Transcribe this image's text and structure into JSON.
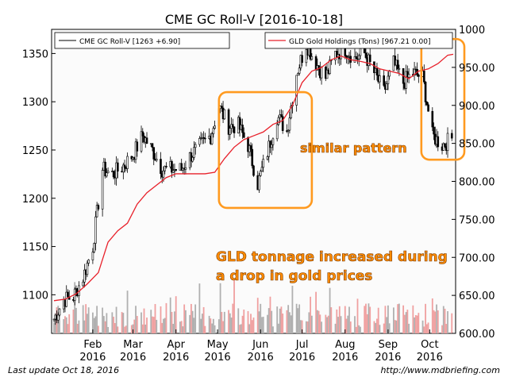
{
  "chart_data": {
    "type": "line",
    "title": "CME GC Roll-V  [2016-10-18]",
    "xlabel": "",
    "ylabel": "",
    "ylabel_right": "",
    "x_ticks": [
      {
        "month": "Feb",
        "year": "2016"
      },
      {
        "month": "Mar",
        "year": "2016"
      },
      {
        "month": "Apr",
        "year": "2016"
      },
      {
        "month": "May",
        "year": "2016"
      },
      {
        "month": "Jun",
        "year": "2016"
      },
      {
        "month": "Jul",
        "year": "2016"
      },
      {
        "month": "Aug",
        "year": "2016"
      },
      {
        "month": "Sep",
        "year": "2016"
      },
      {
        "month": "Oct",
        "year": "2016"
      }
    ],
    "x_range": [
      "2016-01-04",
      "2016-10-18"
    ],
    "left_axis": {
      "ticks": [
        "1100",
        "1150",
        "1200",
        "1250",
        "1300",
        "1350"
      ],
      "range": [
        1060,
        1375
      ]
    },
    "right_axis": {
      "ticks": [
        "600.00",
        "650.00",
        "700.00",
        "750.00",
        "800.00",
        "850.00",
        "900.00",
        "950.00",
        "1000"
      ],
      "range": [
        600,
        1000
      ]
    },
    "grid": false,
    "legend": [
      {
        "label": "CME GC Roll-V [1263 +6.90]",
        "color": "#000000",
        "placement": "top-left"
      },
      {
        "label": "GLD Gold Holdings (Tons) [967.21 0.00]",
        "color": "#e8202a",
        "placement": "top-right"
      }
    ],
    "series": [
      {
        "name": "CME GC Roll-V",
        "style": "candlestick",
        "axis": "left",
        "points": [
          [
            "2016-01-04",
            1075
          ],
          [
            "2016-01-11",
            1095
          ],
          [
            "2016-01-18",
            1098
          ],
          [
            "2016-01-25",
            1118
          ],
          [
            "2016-02-01",
            1150
          ],
          [
            "2016-02-08",
            1230
          ],
          [
            "2016-02-15",
            1225
          ],
          [
            "2016-02-22",
            1232
          ],
          [
            "2016-03-01",
            1245
          ],
          [
            "2016-03-08",
            1265
          ],
          [
            "2016-03-15",
            1250
          ],
          [
            "2016-03-22",
            1230
          ],
          [
            "2016-03-29",
            1230
          ],
          [
            "2016-04-05",
            1230
          ],
          [
            "2016-04-12",
            1245
          ],
          [
            "2016-04-19",
            1255
          ],
          [
            "2016-04-26",
            1265
          ],
          [
            "2016-05-02",
            1295
          ],
          [
            "2016-05-09",
            1275
          ],
          [
            "2016-05-16",
            1275
          ],
          [
            "2016-05-23",
            1255
          ],
          [
            "2016-05-30",
            1215
          ],
          [
            "2016-06-06",
            1248
          ],
          [
            "2016-06-13",
            1285
          ],
          [
            "2016-06-20",
            1270
          ],
          [
            "2016-06-27",
            1330
          ],
          [
            "2016-07-04",
            1360
          ],
          [
            "2016-07-11",
            1340
          ],
          [
            "2016-07-18",
            1325
          ],
          [
            "2016-07-25",
            1350
          ],
          [
            "2016-08-01",
            1355
          ],
          [
            "2016-08-08",
            1345
          ],
          [
            "2016-08-15",
            1350
          ],
          [
            "2016-08-22",
            1330
          ],
          [
            "2016-08-29",
            1310
          ],
          [
            "2016-09-05",
            1340
          ],
          [
            "2016-09-12",
            1320
          ],
          [
            "2016-09-19",
            1330
          ],
          [
            "2016-09-26",
            1325
          ],
          [
            "2016-10-03",
            1265
          ],
          [
            "2016-10-10",
            1255
          ],
          [
            "2016-10-18",
            1263
          ]
        ]
      },
      {
        "name": "GLD Gold Holdings (Tons)",
        "style": "line",
        "axis": "right",
        "color": "#e8202a",
        "points": [
          [
            "2016-01-04",
            643
          ],
          [
            "2016-01-12",
            645
          ],
          [
            "2016-01-20",
            652
          ],
          [
            "2016-01-28",
            665
          ],
          [
            "2016-02-05",
            680
          ],
          [
            "2016-02-12",
            720
          ],
          [
            "2016-02-19",
            735
          ],
          [
            "2016-02-26",
            745
          ],
          [
            "2016-03-04",
            770
          ],
          [
            "2016-03-11",
            785
          ],
          [
            "2016-03-18",
            795
          ],
          [
            "2016-03-25",
            805
          ],
          [
            "2016-04-01",
            810
          ],
          [
            "2016-04-08",
            810
          ],
          [
            "2016-04-15",
            810
          ],
          [
            "2016-04-22",
            810
          ],
          [
            "2016-04-29",
            812
          ],
          [
            "2016-05-06",
            830
          ],
          [
            "2016-05-13",
            845
          ],
          [
            "2016-05-20",
            855
          ],
          [
            "2016-05-27",
            860
          ],
          [
            "2016-06-03",
            865
          ],
          [
            "2016-06-10",
            875
          ],
          [
            "2016-06-17",
            880
          ],
          [
            "2016-06-24",
            900
          ],
          [
            "2016-07-01",
            930
          ],
          [
            "2016-07-08",
            945
          ],
          [
            "2016-07-15",
            950
          ],
          [
            "2016-07-22",
            960
          ],
          [
            "2016-07-29",
            965
          ],
          [
            "2016-08-05",
            960
          ],
          [
            "2016-08-12",
            958
          ],
          [
            "2016-08-19",
            955
          ],
          [
            "2016-08-26",
            948
          ],
          [
            "2016-09-02",
            945
          ],
          [
            "2016-09-09",
            942
          ],
          [
            "2016-09-16",
            935
          ],
          [
            "2016-09-23",
            945
          ],
          [
            "2016-09-30",
            948
          ],
          [
            "2016-10-07",
            955
          ],
          [
            "2016-10-14",
            966
          ],
          [
            "2016-10-18",
            967.21
          ]
        ]
      },
      {
        "name": "Volume",
        "style": "bars",
        "axis": "bottom",
        "points": []
      }
    ],
    "annotations": [
      {
        "text": "similar pattern",
        "color": "#ff8c00",
        "placement": "right of June box"
      },
      {
        "text": "GLD tonnage increased during",
        "color": "#ff8c00",
        "placement": "lower middle"
      },
      {
        "text": "a drop in gold prices",
        "color": "#ff8c00",
        "placement": "lower middle"
      }
    ],
    "highlight_boxes": [
      {
        "from": "2016-05-02",
        "to": "2016-06-30",
        "y_from": 1190,
        "y_to": 1310
      },
      {
        "from": "2016-09-25",
        "to": "2016-10-18",
        "y_from": 1240,
        "y_to": 1365
      }
    ]
  },
  "footer": {
    "left": "Last update Oct 18, 2016",
    "right": "http://www.mdbriefing.com"
  }
}
